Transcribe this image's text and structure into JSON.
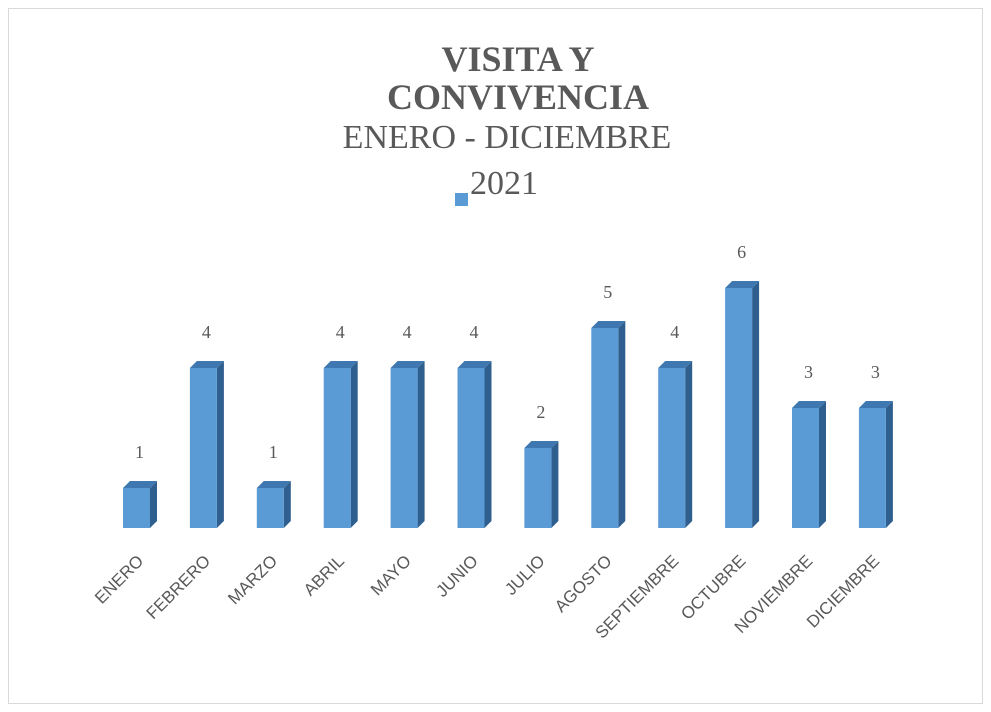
{
  "chart_data": {
    "type": "bar3d",
    "title": "VISITA Y CONVIVENCIA",
    "subtitle": "ENERO - DICIEMBRE",
    "series": [
      {
        "name": "2021",
        "color": "#5b9bd5",
        "values": [
          1,
          4,
          1,
          4,
          4,
          4,
          2,
          5,
          4,
          6,
          3,
          3
        ]
      }
    ],
    "categories": [
      "ENERO",
      "FEBRERO",
      "MARZO",
      "ABRIL",
      "MAYO",
      "JUNIO",
      "JULIO",
      "AGOSTO",
      "SEPTIEMBRE",
      "OCTUBRE",
      "NOVIEMBRE",
      "DICIEMBRE"
    ],
    "legend": "top"
  }
}
